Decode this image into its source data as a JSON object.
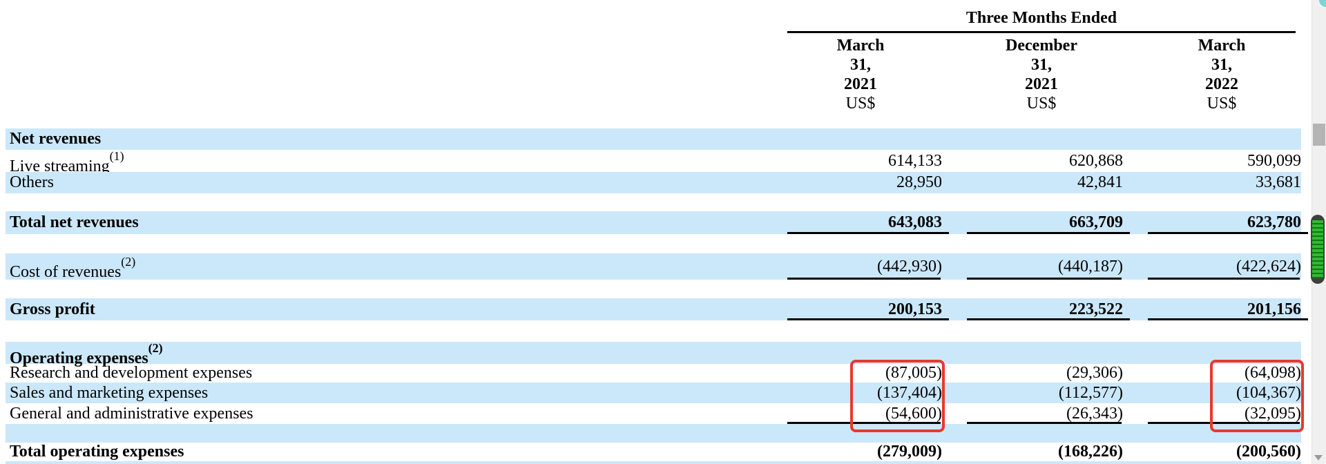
{
  "header": {
    "span_title": "Three Months Ended",
    "columns": [
      {
        "lines": [
          "March",
          "31,",
          "2021"
        ],
        "currency": "US$"
      },
      {
        "lines": [
          "December",
          "31,",
          "2021"
        ],
        "currency": "US$"
      },
      {
        "lines": [
          "March",
          "31,",
          "2022"
        ],
        "currency": "US$"
      }
    ]
  },
  "rows": [
    {
      "label": "Net revenues"
    },
    {
      "label": "Live streaming",
      "sup": "(1)",
      "values": [
        "614,133",
        "620,868",
        "590,099"
      ]
    },
    {
      "label": "Others",
      "values": [
        "28,950",
        "42,841",
        "33,681"
      ]
    },
    {
      "label": "Total net revenues",
      "values": [
        "643,083",
        "663,709",
        "623,780"
      ]
    },
    {
      "label": "Cost of revenues",
      "sup": "(2)",
      "values": [
        "(442,930)",
        "(440,187)",
        "(422,624)"
      ]
    },
    {
      "label": "Gross profit",
      "values": [
        "200,153",
        "223,522",
        "201,156"
      ]
    },
    {
      "label": "Operating expenses",
      "sup": "(2)"
    },
    {
      "label": "Research and development expenses",
      "values": [
        "(87,005)",
        "(29,306)",
        "(64,098)"
      ]
    },
    {
      "label": "Sales and marketing expenses",
      "values": [
        "(137,404)",
        "(112,577)",
        "(104,367)"
      ]
    },
    {
      "label": "General and administrative expenses",
      "values": [
        "(54,600)",
        "(26,343)",
        "(32,095)"
      ]
    },
    {
      "label": "Total operating expenses",
      "values": [
        "(279,009)",
        "(168,226)",
        "(200,560)"
      ]
    }
  ],
  "annotations": {
    "highlighted_rows": [
      "Research and development expenses",
      "Sales and marketing expenses",
      "General and administrative expenses"
    ],
    "highlighted_columns": [
      "March 31, 2021",
      "March 31, 2022"
    ]
  },
  "colors": {
    "row_highlight_blue": "#cbe8fa",
    "annotation_red": "#e8392e",
    "scroll_indicator_green": "#33b833",
    "scrollbar_thumb_gray": "#b4b4b4",
    "corner_teal": "#7cd4d4"
  }
}
